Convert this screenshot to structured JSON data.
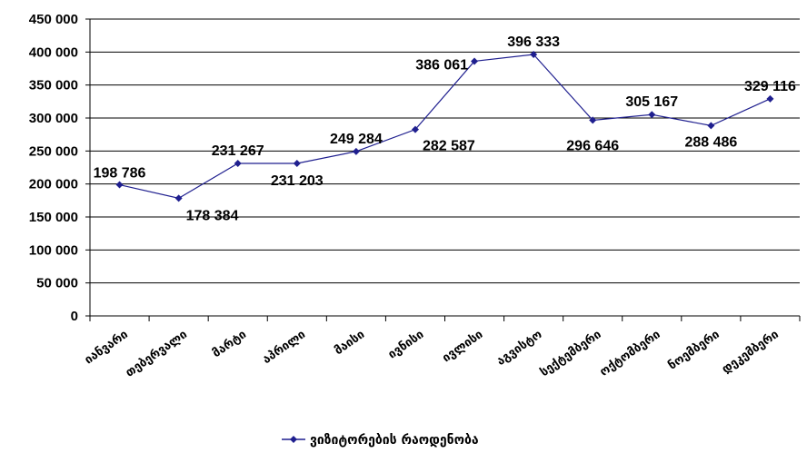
{
  "chart_data": {
    "type": "line",
    "categories": [
      "იანვარი",
      "თებერვალი",
      "მარტი",
      "აპრილი",
      "მაისი",
      "ივნისი",
      "ივლისი",
      "აგვისტო",
      "სექტემბერი",
      "ოქტომბერი",
      "ნოემბერი",
      "დეკემბერი"
    ],
    "series": [
      {
        "name": "ვიზიტორების რაოდენობა",
        "values": [
          198786,
          178384,
          231267,
          231203,
          249284,
          282587,
          386061,
          396333,
          296646,
          305167,
          288486,
          329116
        ],
        "labels": [
          "198 786",
          "178 384",
          "231 267",
          "231 203",
          "249 284",
          "282 587",
          "386 061",
          "396 333",
          "296 646",
          "305 167",
          "288 486",
          "329 116"
        ]
      }
    ],
    "ylim": [
      0,
      450000
    ],
    "yticks": [
      0,
      50000,
      100000,
      150000,
      200000,
      250000,
      300000,
      350000,
      400000,
      450000
    ],
    "ytick_labels": [
      "0",
      "50 000",
      "100 000",
      "150 000",
      "200 000",
      "250 000",
      "300 000",
      "350 000",
      "400 000",
      "450 000"
    ],
    "grid": true,
    "legend_position": "bottom",
    "title": "",
    "xlabel": "",
    "ylabel": "",
    "line_color": "#1f1f8f"
  }
}
